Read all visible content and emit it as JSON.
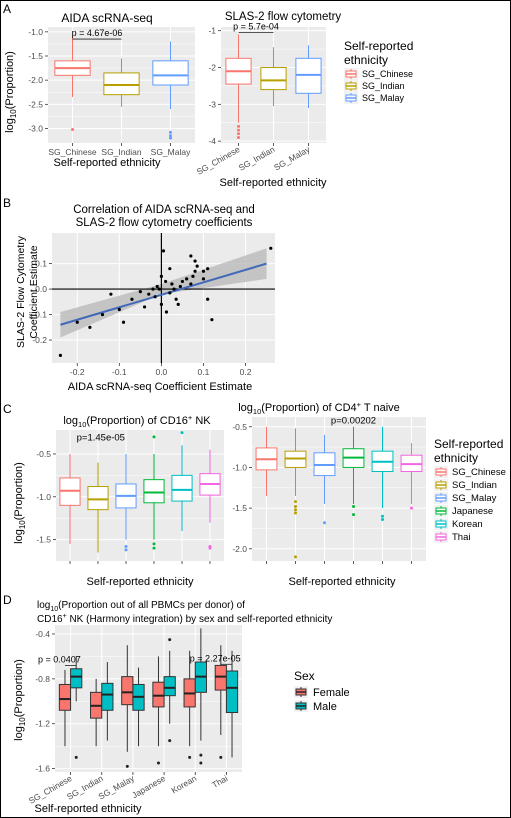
{
  "panels": {
    "A": "A",
    "B": "B",
    "C": "C",
    "D": "D"
  },
  "colors": {
    "SG_Chinese": "#f8766d",
    "SG_Indian": "#b79f00",
    "SG_Malay": "#619cff",
    "Japanese": "#00ba38",
    "Korean": "#00bfc4",
    "Thai": "#f564e3",
    "Female": "#f8766d",
    "Male": "#00bfc4",
    "panel_bg": "#ebebeb",
    "grid": "#ffffff",
    "regression": "#4169b8",
    "ci_band": "#bdbdbd"
  },
  "legends": {
    "ethnicity3": {
      "title_line1": "Self-reported",
      "title_line2": "ethnicity",
      "entries": [
        "SG_Chinese",
        "SG_Indian",
        "SG_Malay"
      ]
    },
    "ethnicity6": {
      "title_line1": "Self-reported",
      "title_line2": "ethnicity",
      "entries": [
        "SG_Chinese",
        "SG_Indian",
        "SG_Malay",
        "Japanese",
        "Korean",
        "Thai"
      ]
    },
    "sex": {
      "title": "Sex",
      "entries": [
        "Female",
        "Male"
      ]
    }
  },
  "chart_data": [
    {
      "id": "A1",
      "type": "box",
      "title": "AIDA scRNA-seq",
      "xlabel": "Self-reported ethnicity",
      "ylabel": "log10(Proportion)",
      "ylabel_base": "log",
      "ylabel_sub": "10",
      "ylabel_rest": "(Proportion)",
      "categories": [
        "SG_Chinese",
        "SG_Indian",
        "SG_Malay"
      ],
      "ylim": [
        -3.3,
        -0.9
      ],
      "yticks": [
        -3.0,
        -2.5,
        -2.0,
        -1.5,
        -1.0
      ],
      "ytick_labels": [
        "-3.0",
        "-2.5",
        "-2.0",
        "-1.5",
        "-1.0"
      ],
      "boxes": [
        {
          "q1": -1.9,
          "median": -1.75,
          "q3": -1.6,
          "whisker_low": -2.35,
          "whisker_high": -1.1,
          "outliers": [
            -3.02
          ]
        },
        {
          "q1": -2.3,
          "median": -2.1,
          "q3": -1.85,
          "whisker_low": -2.55,
          "whisker_high": -1.55,
          "outliers": []
        },
        {
          "q1": -2.1,
          "median": -1.9,
          "q3": -1.6,
          "whisker_low": -2.6,
          "whisker_high": -1.2,
          "outliers": [
            -3.08,
            -3.15,
            -3.2
          ]
        }
      ],
      "annotations": [
        {
          "text": "p = 4.67e-06",
          "from": 0,
          "to": 1,
          "y": -1.15
        }
      ]
    },
    {
      "id": "A2",
      "type": "box",
      "title": "SLAS-2 flow cytometry",
      "xlabel": "Self-reported ethnicity",
      "ylabel": "",
      "categories": [
        "SG_Chinese",
        "SG_Indian",
        "SG_Malay"
      ],
      "ylim": [
        -4.05,
        -0.9
      ],
      "yticks": [
        -4,
        -3,
        -2,
        -1
      ],
      "ytick_labels": [
        "-4",
        "-3",
        "-2",
        "-1"
      ],
      "boxes": [
        {
          "q1": -2.45,
          "median": -2.1,
          "q3": -1.75,
          "whisker_low": -3.5,
          "whisker_high": -1.1,
          "outliers": [
            -3.6,
            -3.7,
            -3.8,
            -3.9
          ]
        },
        {
          "q1": -2.6,
          "median": -2.35,
          "q3": -2.0,
          "whisker_low": -3.05,
          "whisker_high": -1.45,
          "outliers": []
        },
        {
          "q1": -2.7,
          "median": -2.2,
          "q3": -1.75,
          "whisker_low": -3.1,
          "whisker_high": -1.4,
          "outliers": []
        }
      ],
      "annotations": [
        {
          "text": "p = 5.7e-04",
          "from": 0,
          "to": 1,
          "y": -1.05
        }
      ]
    },
    {
      "id": "B",
      "type": "scatter",
      "title_line1": "Correlation of AIDA scRNA-seq and",
      "title_line2": "SLAS-2 flow cytometry coefficients",
      "xlabel": "AIDA scRNA-seq Coefficient Estimate",
      "ylabel_line1": "SLAS-2 Flow Cytometry",
      "ylabel_line2": "Coefficient Estimate",
      "xlim": [
        -0.26,
        0.27
      ],
      "ylim": [
        -0.29,
        0.22
      ],
      "xticks": [
        -0.2,
        -0.1,
        0.0,
        0.1,
        0.2
      ],
      "xtick_labels": [
        "-0.2",
        "-0.1",
        "0.0",
        "0.1",
        "0.2"
      ],
      "yticks": [
        -0.2,
        -0.1,
        0.0,
        0.1
      ],
      "ytick_labels": [
        "-0.2",
        "-0.1",
        "0.0",
        "0.1"
      ],
      "fit": {
        "x": [
          -0.24,
          0.25
        ],
        "y": [
          -0.14,
          0.1
        ]
      },
      "ci": {
        "x": [
          -0.24,
          0.0,
          0.25
        ],
        "lo": [
          -0.19,
          -0.02,
          0.04
        ],
        "hi": [
          -0.09,
          0.02,
          0.16
        ]
      },
      "points": [
        [
          -0.24,
          -0.26
        ],
        [
          -0.2,
          -0.13
        ],
        [
          -0.17,
          -0.15
        ],
        [
          -0.14,
          -0.1
        ],
        [
          -0.12,
          -0.02
        ],
        [
          -0.1,
          -0.08
        ],
        [
          -0.09,
          -0.13
        ],
        [
          -0.07,
          -0.04
        ],
        [
          -0.05,
          -0.01
        ],
        [
          -0.04,
          -0.07
        ],
        [
          -0.03,
          -0.02
        ],
        [
          -0.02,
          0.0
        ],
        [
          -0.015,
          -0.03
        ],
        [
          -0.01,
          0.01
        ],
        [
          0.0,
          -0.06
        ],
        [
          0.0,
          0.05
        ],
        [
          0.005,
          0.15
        ],
        [
          0.01,
          0.03
        ],
        [
          0.012,
          -0.09
        ],
        [
          0.02,
          0.08
        ],
        [
          0.025,
          0.02
        ],
        [
          0.03,
          0.0
        ],
        [
          0.035,
          -0.04
        ],
        [
          0.04,
          -0.06
        ],
        [
          0.045,
          0.01
        ],
        [
          0.05,
          0.03
        ],
        [
          0.06,
          0.04
        ],
        [
          0.07,
          0.02
        ],
        [
          0.075,
          0.05
        ],
        [
          0.08,
          0.07
        ],
        [
          0.085,
          0.09
        ],
        [
          0.1,
          0.07
        ],
        [
          0.1,
          0.04
        ],
        [
          0.11,
          0.08
        ],
        [
          0.12,
          -0.12
        ],
        [
          0.08,
          0.11
        ],
        [
          0.07,
          0.13
        ],
        [
          0.11,
          -0.04
        ],
        [
          -0.005,
          0.0
        ],
        [
          0.02,
          -0.015
        ],
        [
          0.26,
          0.16
        ]
      ]
    },
    {
      "id": "C1",
      "type": "box",
      "title_pre": "log",
      "title_sub": "10",
      "title_mid": "(Proportion) of CD16",
      "title_sup": "+",
      "title_post": " NK",
      "xlabel": "Self-reported ethnicity",
      "ylabel_base": "log",
      "ylabel_sub": "10",
      "ylabel_rest": "(Proportion)",
      "categories": [
        "SG_Chinese",
        "SG_Indian",
        "SG_Malay",
        "Japanese",
        "Korean",
        "Thai"
      ],
      "ylim": [
        -1.75,
        -0.22
      ],
      "yticks": [
        -1.5,
        -1.0,
        -0.5
      ],
      "ytick_labels": [
        "-1.5",
        "-1.0",
        "-0.5"
      ],
      "boxes": [
        {
          "q1": -1.1,
          "median": -0.93,
          "q3": -0.78,
          "whisker_low": -1.55,
          "whisker_high": -0.5,
          "outliers": []
        },
        {
          "q1": -1.15,
          "median": -1.03,
          "q3": -0.88,
          "whisker_low": -1.65,
          "whisker_high": -0.6,
          "outliers": []
        },
        {
          "q1": -1.13,
          "median": -0.99,
          "q3": -0.85,
          "whisker_low": -1.5,
          "whisker_high": -0.5,
          "outliers": [
            -1.58,
            -1.62
          ]
        },
        {
          "q1": -1.07,
          "median": -0.95,
          "q3": -0.8,
          "whisker_low": -1.5,
          "whisker_high": -0.5,
          "outliers": [
            -0.3,
            -1.55,
            -1.6
          ]
        },
        {
          "q1": -1.05,
          "median": -0.92,
          "q3": -0.75,
          "whisker_low": -1.4,
          "whisker_high": -0.4,
          "outliers": [
            -0.25
          ]
        },
        {
          "q1": -0.98,
          "median": -0.85,
          "q3": -0.73,
          "whisker_low": -1.3,
          "whisker_high": -0.45,
          "outliers": [
            -1.58,
            -1.6
          ]
        }
      ],
      "annotations": [
        {
          "text": "p=1.45e-05",
          "x": 1.6,
          "y": -0.34
        }
      ]
    },
    {
      "id": "C2",
      "type": "box",
      "title_pre": "log",
      "title_sub": "10",
      "title_mid": "(Proportion) of CD4",
      "title_sup": "+",
      "title_post": " T naive",
      "xlabel": "Self-reported ethnicity",
      "categories": [
        "SG_Chinese",
        "SG_Indian",
        "SG_Malay",
        "Japanese",
        "Korean",
        "Thai"
      ],
      "ylim": [
        -2.15,
        -0.38
      ],
      "yticks": [
        -2.0,
        -1.5,
        -1.0,
        -0.5
      ],
      "ytick_labels": [
        "-2.0",
        "-1.5",
        "-1.0",
        "-0.5"
      ],
      "boxes": [
        {
          "q1": -1.03,
          "median": -0.9,
          "q3": -0.76,
          "whisker_low": -1.35,
          "whisker_high": -0.5,
          "outliers": []
        },
        {
          "q1": -1.0,
          "median": -0.89,
          "q3": -0.8,
          "whisker_low": -1.35,
          "whisker_high": -0.52,
          "outliers": [
            -1.42,
            -1.48,
            -1.52,
            -1.56,
            -2.1
          ]
        },
        {
          "q1": -1.1,
          "median": -0.97,
          "q3": -0.82,
          "whisker_low": -1.45,
          "whisker_high": -0.6,
          "outliers": [
            -1.68
          ]
        },
        {
          "q1": -1.0,
          "median": -0.88,
          "q3": -0.77,
          "whisker_low": -1.45,
          "whisker_high": -0.5,
          "outliers": [
            -1.48,
            -1.58
          ]
        },
        {
          "q1": -1.05,
          "median": -0.93,
          "q3": -0.8,
          "whisker_low": -1.5,
          "whisker_high": -0.5,
          "outliers": [
            -1.6,
            -1.64
          ]
        },
        {
          "q1": -1.05,
          "median": -0.96,
          "q3": -0.85,
          "whisker_low": -1.45,
          "whisker_high": -0.7,
          "outliers": [
            -1.5
          ]
        }
      ],
      "annotations": [
        {
          "text": "p=0.00202",
          "x": 3.5,
          "y": -0.46
        }
      ]
    },
    {
      "id": "D",
      "type": "box",
      "title_line1_pre": "log",
      "title_line1_sub": "10",
      "title_line1_post": "(Proportion out of all PBMCs per donor) of",
      "title_line2_pre": "CD16",
      "title_line2_sup": "+",
      "title_line2_post": " NK (Harmony integration) by sex and self-reported ethnicity",
      "xlabel": "Self-reported ethnicity",
      "ylabel_base": "log",
      "ylabel_sub": "10",
      "ylabel_rest": "(Proportion)",
      "categories": [
        "SG_Chinese",
        "SG_Indian",
        "SG_Malay",
        "Japanese",
        "Korean",
        "Thai"
      ],
      "groups": [
        "Female",
        "Male"
      ],
      "ylim": [
        -1.63,
        -0.32
      ],
      "yticks": [
        -1.6,
        -1.2,
        -0.8,
        -0.4
      ],
      "ytick_labels": [
        "-1.6",
        "-1.2",
        "-0.8",
        "-0.4"
      ],
      "boxes": [
        [
          {
            "q1": -1.08,
            "median": -0.98,
            "q3": -0.85,
            "whisker_low": -1.4,
            "whisker_high": -0.72,
            "outliers": []
          },
          {
            "q1": -0.88,
            "median": -0.78,
            "q3": -0.71,
            "whisker_low": -1.0,
            "whisker_high": -0.6,
            "outliers": [
              -1.5
            ]
          }
        ],
        [
          {
            "q1": -1.15,
            "median": -1.04,
            "q3": -0.92,
            "whisker_low": -1.4,
            "whisker_high": -0.8,
            "outliers": []
          },
          {
            "q1": -1.08,
            "median": -0.94,
            "q3": -0.84,
            "whisker_low": -1.35,
            "whisker_high": -0.65,
            "outliers": []
          }
        ],
        [
          {
            "q1": -1.03,
            "median": -0.92,
            "q3": -0.78,
            "whisker_low": -1.45,
            "whisker_high": -0.5,
            "outliers": [
              -1.58
            ]
          },
          {
            "q1": -1.08,
            "median": -0.96,
            "q3": -0.85,
            "whisker_low": -1.4,
            "whisker_high": -0.7,
            "outliers": []
          }
        ],
        [
          {
            "q1": -1.05,
            "median": -0.95,
            "q3": -0.83,
            "whisker_low": -1.4,
            "whisker_high": -0.6,
            "outliers": [
              -1.55
            ]
          },
          {
            "q1": -0.95,
            "median": -0.88,
            "q3": -0.78,
            "whisker_low": -1.2,
            "whisker_high": -0.55,
            "outliers": [
              -0.45,
              -1.35
            ]
          }
        ],
        [
          {
            "q1": -1.05,
            "median": -0.93,
            "q3": -0.8,
            "whisker_low": -1.4,
            "whisker_high": -0.55,
            "outliers": [
              -1.5
            ]
          },
          {
            "q1": -0.92,
            "median": -0.78,
            "q3": -0.65,
            "whisker_low": -1.35,
            "whisker_high": -0.35,
            "outliers": [
              -1.48,
              -1.55
            ]
          }
        ],
        [
          {
            "q1": -0.9,
            "median": -0.78,
            "q3": -0.68,
            "whisker_low": -1.3,
            "whisker_high": -0.5,
            "outliers": [
              -1.5
            ]
          },
          {
            "q1": -1.1,
            "median": -0.88,
            "q3": -0.73,
            "whisker_low": -1.5,
            "whisker_high": -0.55,
            "outliers": []
          }
        ]
      ],
      "annotations": [
        {
          "text": "p = 0.0407",
          "category": 0,
          "y": -0.68
        },
        {
          "text": "p = 2.27e-05",
          "category": 5,
          "y": -0.67
        }
      ]
    }
  ]
}
